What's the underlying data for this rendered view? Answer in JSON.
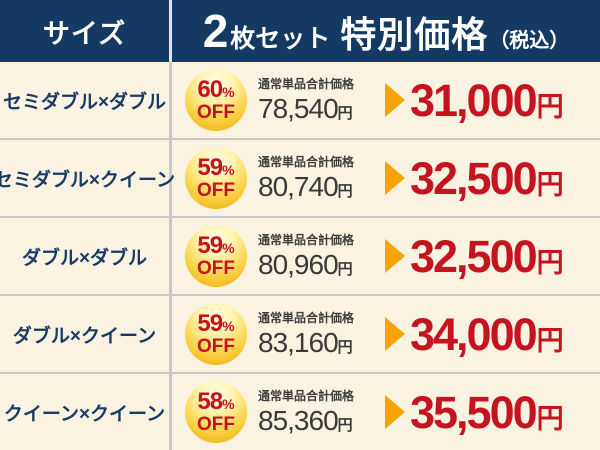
{
  "colors": {
    "header_navy": "#143A63",
    "row_cream": "#FAF3E2",
    "price_red": "#C5131F",
    "badge_gold_top": "#FFFDE8",
    "badge_gold_bottom": "#EDA900",
    "arrow_gold": "#F5A400",
    "divider_gray": "#C9C9C9"
  },
  "header": {
    "size_label": "サイズ",
    "set_count": "2",
    "set_unit": "枚セット",
    "title": "特別価格",
    "tax_note": "（税込）"
  },
  "labels": {
    "percent_sign": "%",
    "off": "OFF",
    "regular_price_label": "通常単品合計価格",
    "yen": "円"
  },
  "rows": [
    {
      "size": "セミダブル×ダブル",
      "discount": "60",
      "regular_price": "78,540",
      "sale_price": "31,000"
    },
    {
      "size": "セミダブル×クイーン",
      "discount": "59",
      "regular_price": "80,740",
      "sale_price": "32,500"
    },
    {
      "size": "ダブル×ダブル",
      "discount": "59",
      "regular_price": "80,960",
      "sale_price": "32,500"
    },
    {
      "size": "ダブル×クイーン",
      "discount": "59",
      "regular_price": "83,160",
      "sale_price": "34,000"
    },
    {
      "size": "クイーン×クイーン",
      "discount": "58",
      "regular_price": "85,360",
      "sale_price": "35,500"
    }
  ]
}
